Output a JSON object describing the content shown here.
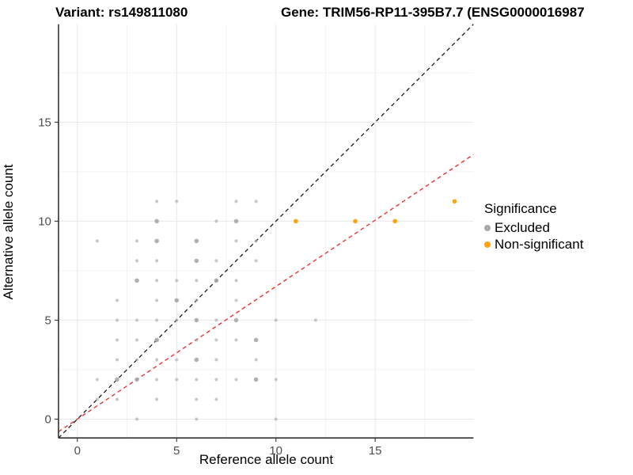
{
  "header": {
    "variant_title": "Variant: rs149811080",
    "gene_title": "Gene: TRIM56-RP11-395B7.7 (ENSG0000016987"
  },
  "chart_data": {
    "type": "scatter",
    "xlabel": "Reference allele count",
    "ylabel": "Alternative allele count",
    "xlim": [
      -0.95,
      19.95
    ],
    "ylim": [
      -0.95,
      19.95
    ],
    "xticks": [
      0,
      5,
      10,
      15
    ],
    "yticks": [
      0,
      5,
      10,
      15
    ],
    "minor_ticks": [
      2.5,
      7.5,
      12.5,
      17.5
    ],
    "grid": "major and minor gridlines, light gray on white",
    "legend": {
      "title": "Significance",
      "position": "right",
      "entries": [
        {
          "label": "Excluded",
          "color": "#a8a8a8"
        },
        {
          "label": "Non-significant",
          "color": "#ffa210"
        }
      ]
    },
    "series": [
      {
        "name": "Excluded",
        "color": "#a8a8a8",
        "points": [
          [
            1,
            1,
            1
          ],
          [
            1,
            2,
            1
          ],
          [
            1,
            9,
            1
          ],
          [
            2,
            1,
            1
          ],
          [
            2,
            2,
            2
          ],
          [
            2,
            3,
            1
          ],
          [
            2,
            4,
            1
          ],
          [
            2,
            5,
            1
          ],
          [
            2,
            6,
            1
          ],
          [
            3,
            0,
            1
          ],
          [
            3,
            2,
            2
          ],
          [
            3,
            3,
            1
          ],
          [
            3,
            4,
            1
          ],
          [
            3,
            5,
            1
          ],
          [
            3,
            7,
            2
          ],
          [
            3,
            8,
            1
          ],
          [
            3,
            9,
            1
          ],
          [
            4,
            1,
            1
          ],
          [
            4,
            2,
            1
          ],
          [
            4,
            3,
            1
          ],
          [
            4,
            4,
            2
          ],
          [
            4,
            5,
            1
          ],
          [
            4,
            6,
            1
          ],
          [
            4,
            7,
            1
          ],
          [
            4,
            8,
            1
          ],
          [
            4,
            9,
            2
          ],
          [
            4,
            10,
            2
          ],
          [
            4,
            11,
            1
          ],
          [
            5,
            2,
            1
          ],
          [
            5,
            3,
            1
          ],
          [
            5,
            5,
            1
          ],
          [
            5,
            6,
            2
          ],
          [
            5,
            7,
            1
          ],
          [
            5,
            11,
            1
          ],
          [
            6,
            0,
            1
          ],
          [
            6,
            1,
            1
          ],
          [
            6,
            2,
            1
          ],
          [
            6,
            3,
            2
          ],
          [
            6,
            4,
            1
          ],
          [
            6,
            5,
            2
          ],
          [
            6,
            6,
            1
          ],
          [
            6,
            7,
            1
          ],
          [
            6,
            8,
            2
          ],
          [
            6,
            9,
            2
          ],
          [
            7,
            1,
            1
          ],
          [
            7,
            2,
            1
          ],
          [
            7,
            3,
            1
          ],
          [
            7,
            4,
            1
          ],
          [
            7,
            5,
            1
          ],
          [
            7,
            7,
            2
          ],
          [
            7,
            8,
            1
          ],
          [
            7,
            10,
            1
          ],
          [
            8,
            2,
            1
          ],
          [
            8,
            4,
            1
          ],
          [
            8,
            5,
            2
          ],
          [
            8,
            6,
            1
          ],
          [
            8,
            7,
            1
          ],
          [
            8,
            9,
            1
          ],
          [
            8,
            10,
            2
          ],
          [
            8,
            11,
            1
          ],
          [
            9,
            2,
            2
          ],
          [
            9,
            3,
            1
          ],
          [
            9,
            4,
            2
          ],
          [
            9,
            8,
            1
          ],
          [
            9,
            9,
            1
          ],
          [
            9,
            11,
            1
          ],
          [
            10,
            0,
            1
          ],
          [
            10,
            2,
            1
          ],
          [
            10,
            5,
            1
          ],
          [
            12,
            5,
            1
          ]
        ]
      },
      {
        "name": "Non-significant",
        "color": "#ffa210",
        "points": [
          [
            11,
            10,
            2
          ],
          [
            14,
            10,
            2
          ],
          [
            16,
            10,
            2
          ],
          [
            19,
            11,
            2
          ]
        ]
      }
    ],
    "lines": [
      {
        "name": "identity",
        "color": "#1a1a1a",
        "style": "dashed",
        "slope": 1.0,
        "intercept": 0
      },
      {
        "name": "expected-ratio",
        "color": "#ee2222",
        "style": "dashed",
        "slope": 0.67,
        "intercept": 0
      }
    ]
  },
  "style_colors": {
    "grid_major": "#e8e8e8",
    "grid_minor": "#f3f3f3",
    "axis_line": "#333333",
    "tick_label": "#4d4d4d"
  }
}
